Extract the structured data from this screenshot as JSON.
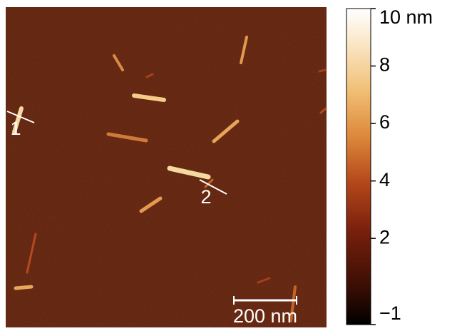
{
  "chart_data": {
    "type": "image",
    "annotations": [
      "1",
      "2"
    ],
    "scale_bar": "200 nm",
    "colorbar": {
      "clim": [
        -1,
        10
      ],
      "ticks": [
        {
          "value": 10,
          "label": "10 nm"
        },
        8,
        6,
        4,
        2,
        {
          "value": -1,
          "label": "−1"
        }
      ]
    }
  }
}
